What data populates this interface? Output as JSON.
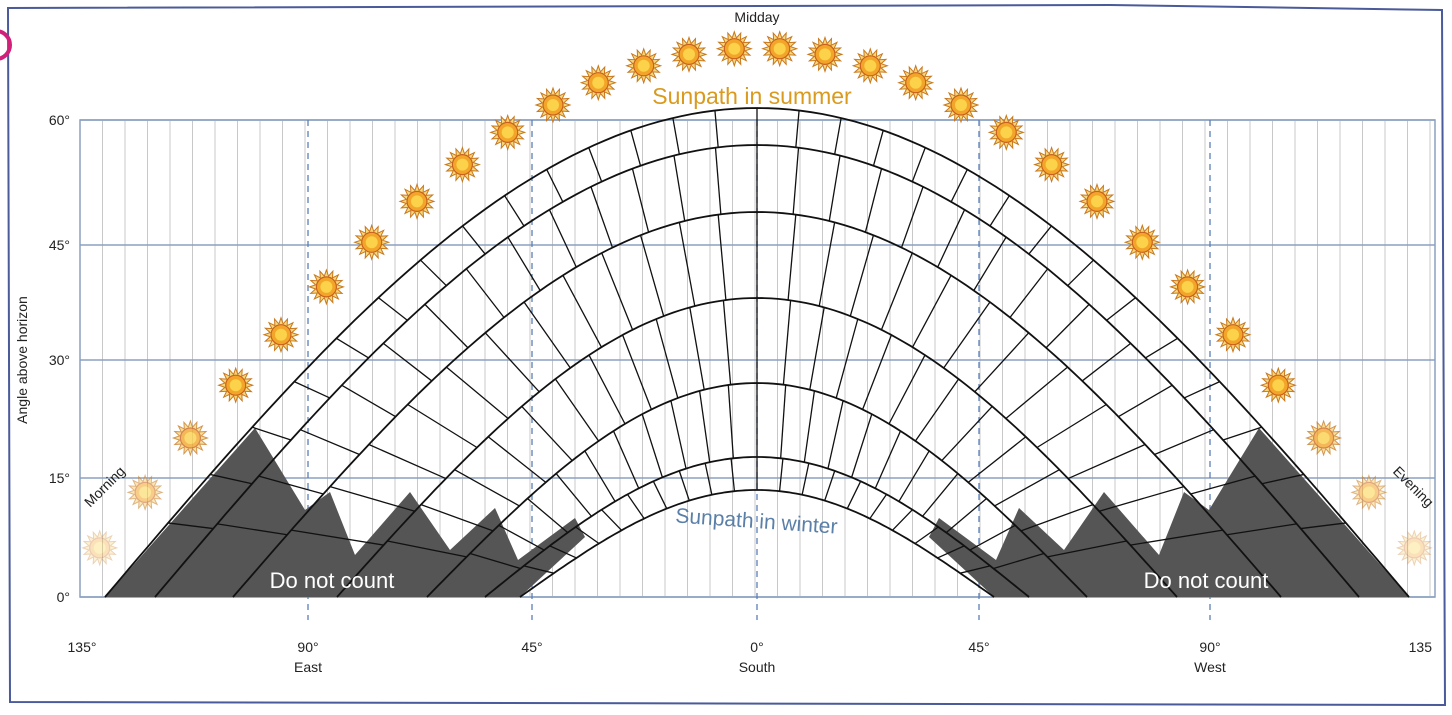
{
  "diagram": {
    "top_label": "Midday",
    "summer_label": "Sunpath in summer",
    "winter_label": "Sunpath in winter",
    "y_axis_label": "Angle above horizon",
    "morning_label": "Morning",
    "evening_label": "Evening",
    "exclusion_labels": [
      "Do not count",
      "Do not count"
    ],
    "y_ticks": [
      "60°",
      "45°",
      "30°",
      "15°",
      "0°"
    ],
    "x_ticks": [
      {
        "angle": "135°"
      },
      {
        "angle": "90°",
        "direction": "East"
      },
      {
        "angle": "45°"
      },
      {
        "angle": "0°",
        "direction": "South"
      },
      {
        "angle": "45°"
      },
      {
        "angle": "90°",
        "direction": "West"
      },
      {
        "angle": "135"
      }
    ]
  }
}
